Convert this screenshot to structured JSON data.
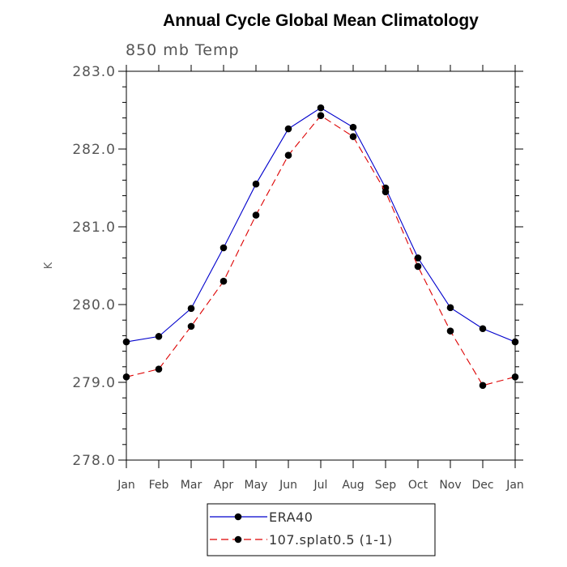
{
  "chart_data": {
    "type": "line",
    "title": "Annual Cycle Global Mean Climatology",
    "subtitle": "850 mb Temp",
    "xlabel": "",
    "ylabel": "K",
    "categories": [
      "Jan",
      "Feb",
      "Mar",
      "Apr",
      "May",
      "Jun",
      "Jul",
      "Aug",
      "Sep",
      "Oct",
      "Nov",
      "Dec",
      "Jan"
    ],
    "ylim": [
      278.0,
      283.0
    ],
    "yticks": [
      "278.0",
      "279.0",
      "280.0",
      "281.0",
      "282.0",
      "283.0"
    ],
    "grid": false,
    "legend_position": "bottom",
    "series": [
      {
        "name": "ERA40",
        "color": "#0000cc",
        "dash": "solid",
        "marker": "filled-circle",
        "values": [
          279.52,
          279.59,
          279.95,
          280.73,
          281.55,
          282.26,
          282.53,
          282.28,
          281.5,
          280.6,
          279.96,
          279.69,
          279.52
        ]
      },
      {
        "name": "107.splat0.5 (1-1)",
        "color": "#dd0000",
        "dash": "dashed",
        "marker": "filled-circle",
        "values": [
          279.07,
          279.17,
          279.72,
          280.3,
          281.15,
          281.92,
          282.43,
          282.16,
          281.45,
          280.49,
          279.66,
          278.96,
          279.07
        ]
      }
    ]
  }
}
